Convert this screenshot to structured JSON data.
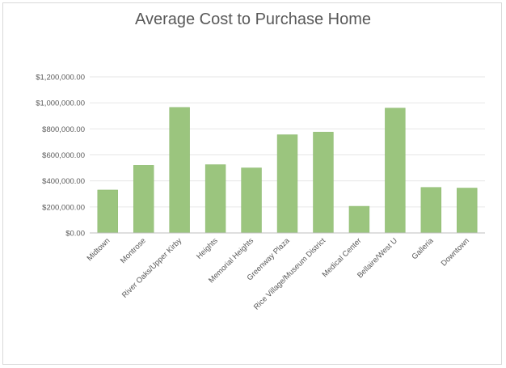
{
  "chart_data": {
    "type": "bar",
    "title": "Average Cost to Purchase Home",
    "xlabel": "",
    "ylabel": "",
    "categories": [
      "Midtown",
      "Montrose",
      "River Oaks/Upper Kirby",
      "Heights",
      "Memorial Heights",
      "Greenway Plaza",
      "Rice Village/Museum District",
      "Medical Center",
      "Bellaire/West U",
      "Galleria",
      "Downtown"
    ],
    "values": [
      330000,
      520000,
      965000,
      525000,
      500000,
      755000,
      775000,
      205000,
      960000,
      350000,
      345000
    ],
    "ylim": [
      0,
      1200000
    ],
    "yticks": [
      0,
      200000,
      400000,
      600000,
      800000,
      1000000,
      1200000
    ],
    "ytick_labels": [
      "$0.00",
      "$200,000.00",
      "$400,000.00",
      "$600,000.00",
      "$800,000.00",
      "$1,000,000.00",
      "$1,200,000.00"
    ],
    "grid": true,
    "legend": "none",
    "bar_color": "#9bc57e",
    "bar_edge_color": "#8ab86c",
    "grid_color": "#e6e6e6",
    "axis_color": "#bfbfbf"
  }
}
